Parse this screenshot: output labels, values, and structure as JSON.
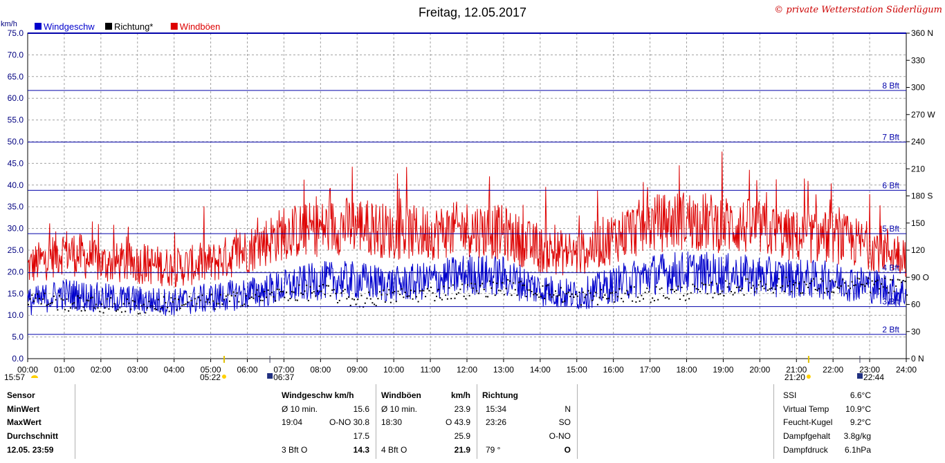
{
  "title": "Freitag, 12.05.2017",
  "watermark": "© private Wetterstation Süderlügum",
  "legend": [
    {
      "label": "Windgeschw",
      "color": "#0000cc"
    },
    {
      "label": "Richtung*",
      "color": "#000000"
    },
    {
      "label": "Windböen",
      "color": "#dd0000"
    }
  ],
  "chart_data": {
    "type": "line",
    "y_unit": "km/h",
    "ylim": [
      0,
      75
    ],
    "y_ticks": [
      "0.0",
      "5.0",
      "10.0",
      "15.0",
      "20.0",
      "25.0",
      "30.0",
      "35.0",
      "40.0",
      "45.0",
      "50.0",
      "55.0",
      "60.0",
      "65.0",
      "70.0",
      "75.0"
    ],
    "y2_lim": [
      0,
      360
    ],
    "y2_ticks": [
      "0 N",
      "30",
      "60",
      "90 O",
      "120",
      "150",
      "180 S",
      "210",
      "240",
      "270 W",
      "300",
      "330",
      "360 N"
    ],
    "x_range": [
      "00:00",
      "24:00"
    ],
    "x_ticks": [
      "00:00",
      "01:00",
      "02:00",
      "03:00",
      "04:00",
      "05:00",
      "06:00",
      "07:00",
      "08:00",
      "09:00",
      "10:00",
      "11:00",
      "12:00",
      "13:00",
      "14:00",
      "15:00",
      "16:00",
      "17:00",
      "18:00",
      "19:00",
      "20:00",
      "21:00",
      "22:00",
      "23:00",
      "24:00"
    ],
    "grid": true,
    "beaufort_lines": [
      {
        "label": "2 Bft",
        "value": 5.6
      },
      {
        "label": "3 Bft",
        "value": 12.0
      },
      {
        "label": "4 Bft",
        "value": 19.8
      },
      {
        "label": "5 Bft",
        "value": 28.8
      },
      {
        "label": "6 Bft",
        "value": 38.8
      },
      {
        "label": "7 Bft",
        "value": 49.9
      },
      {
        "label": "8 Bft",
        "value": 61.8
      }
    ],
    "series": [
      {
        "name": "Windgeschw",
        "color": "#0000cc",
        "hours": [
          0,
          1,
          2,
          3,
          4,
          5,
          6,
          7,
          8,
          9,
          10,
          11,
          12,
          13,
          14,
          15,
          16,
          17,
          18,
          19,
          20,
          21,
          22,
          23,
          24
        ],
        "values": [
          13,
          15,
          14,
          13.5,
          13,
          14,
          15,
          16.5,
          18,
          18,
          17,
          18,
          19.5,
          19,
          16,
          14.5,
          17,
          19.5,
          20,
          19.5,
          19,
          18.5,
          18,
          17,
          15
        ]
      },
      {
        "name": "Windböen",
        "color": "#dd0000",
        "hours": [
          0,
          1,
          2,
          3,
          4,
          5,
          6,
          7,
          8,
          9,
          10,
          11,
          12,
          13,
          14,
          15,
          16,
          17,
          18,
          19,
          20,
          21,
          22,
          23,
          24
        ],
        "values": [
          21,
          25,
          22,
          22,
          21,
          22,
          25,
          29,
          30,
          31,
          29,
          29,
          30,
          29,
          25,
          24,
          28,
          31,
          32,
          31,
          30,
          28,
          28,
          26,
          24
        ]
      },
      {
        "name": "Richtung*",
        "color": "#000000",
        "hours": [
          0,
          1,
          2,
          3,
          4,
          5,
          6,
          7,
          8,
          9,
          10,
          11,
          12,
          13,
          14,
          15,
          16,
          17,
          18,
          19,
          20,
          21,
          22,
          23,
          24
        ],
        "values": [
          68,
          62,
          60,
          58,
          62,
          63,
          68,
          72,
          75,
          65,
          70,
          73,
          76,
          80,
          76,
          68,
          70,
          72,
          74,
          78,
          82,
          82,
          80,
          82,
          80
        ]
      }
    ]
  },
  "sun_events": [
    {
      "time": "05:22",
      "kind": "sunrise"
    },
    {
      "time": "21:20",
      "kind": "sunset"
    },
    {
      "time": "06:37",
      "kind": "moonset"
    },
    {
      "time": "22:44",
      "kind": "moonrise"
    }
  ],
  "left_time": "15:57",
  "stats": {
    "labels": [
      "Sensor",
      "MinWert",
      "MaxWert",
      "Durchschnitt",
      "12.05. 23:59"
    ],
    "wind_header": "Windgeschw  km/h",
    "wind_rows": [
      [
        "Ø 10 min.",
        "15.6"
      ],
      [
        "19:04",
        "O-NO 30.8"
      ],
      [
        "",
        "17.5"
      ],
      [
        "3 Bft O",
        "14.3"
      ]
    ],
    "gust_header_name": "Windböen",
    "gust_header_unit": "km/h",
    "gust_rows": [
      [
        "Ø 10 min.",
        "23.9"
      ],
      [
        "18:30",
        "O 43.9"
      ],
      [
        "",
        "25.9"
      ],
      [
        "4 Bft O",
        "21.9"
      ]
    ],
    "dir_header": "Richtung",
    "dir_rows": [
      [
        "15:34",
        "N"
      ],
      [
        "23:26",
        "SO"
      ],
      [
        "",
        "O-NO"
      ],
      [
        "79 °",
        "O"
      ]
    ],
    "extra": [
      {
        "label": "SSI",
        "value": "6.6°C"
      },
      {
        "label": "Virtual Temp",
        "value": "10.9°C"
      },
      {
        "label": "Feucht-Kugel",
        "value": "9.2°C"
      },
      {
        "label": "Dampfgehalt",
        "value": "3.8g/kg"
      },
      {
        "label": "Dampfdruck",
        "value": "6.1hPa"
      }
    ]
  }
}
